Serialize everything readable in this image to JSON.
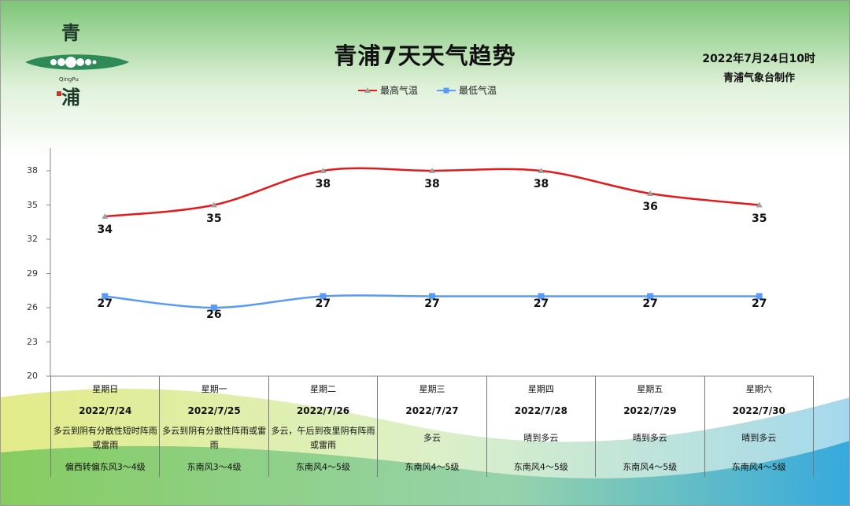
{
  "logo": {
    "top_char": "青",
    "sub": "QingPu",
    "bottom_char": "浦"
  },
  "title": "青浦7天天气趋势",
  "issued": "2022年7月24日10时",
  "issuer": "青浦气象台制作",
  "colors": {
    "high": "#e31a1c",
    "low": "#5b9bf8",
    "marker_high": "#a0a0a0",
    "marker_low": "#5b9bf8"
  },
  "chart_data": {
    "type": "line",
    "categories": [
      "2022/7/24",
      "2022/7/25",
      "2022/7/26",
      "2022/7/27",
      "2022/7/28",
      "2022/7/29",
      "2022/7/30"
    ],
    "series": [
      {
        "name": "最高气温",
        "values": [
          34,
          35,
          38,
          38,
          38,
          36,
          35
        ],
        "marker": "triangle"
      },
      {
        "name": "最低气温",
        "values": [
          27,
          26,
          27,
          27,
          27,
          27,
          27
        ],
        "marker": "square"
      }
    ],
    "ylim": [
      20,
      40
    ],
    "yticks": [
      20,
      23,
      26,
      29,
      32,
      35,
      38
    ],
    "grid": false,
    "legend": "top"
  },
  "table": {
    "weekdays": [
      "星期日",
      "星期一",
      "星期二",
      "星期三",
      "星期四",
      "星期五",
      "星期六"
    ],
    "dates": [
      "2022/7/24",
      "2022/7/25",
      "2022/7/26",
      "2022/7/27",
      "2022/7/28",
      "2022/7/29",
      "2022/7/30"
    ],
    "weather": [
      "多云到阴有分散性短时阵雨或雷雨",
      "多云到阴有分散性阵雨或雷雨",
      "多云，午后到夜里阴有阵雨或雷雨",
      "多云",
      "晴到多云",
      "晴到多云",
      "晴到多云"
    ],
    "wind": [
      "偏西转偏东风3～4级",
      "东南风3～4级",
      "东南风4～5级",
      "东南风4～5级",
      "东南风4～5级",
      "东南风4～5级",
      "东南风4～5级"
    ]
  }
}
